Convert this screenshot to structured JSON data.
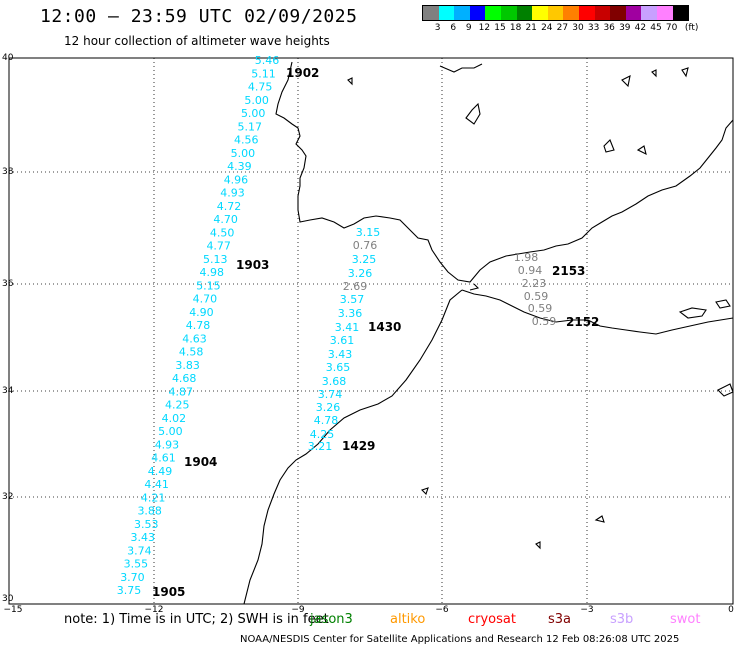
{
  "header": {
    "title": "12:00 – 23:59 UTC 02/09/2025",
    "subtitle": "12 hour collection of altimeter wave heights"
  },
  "colorbar": {
    "unit": "(ft)",
    "labels": [
      "3",
      "6",
      "9",
      "12",
      "15",
      "18",
      "21",
      "24",
      "27",
      "30",
      "33",
      "36",
      "39",
      "42",
      "45",
      "70"
    ],
    "colors": [
      "#808080",
      "#00ffff",
      "#00b0ff",
      "#0000ff",
      "#00ff00",
      "#00c800",
      "#008000",
      "#ffff00",
      "#ffc800",
      "#ff8000",
      "#ff0000",
      "#c80000",
      "#800000",
      "#a000a0",
      "#c8a0ff",
      "#ff80ff",
      "#000000"
    ]
  },
  "axes": {
    "lon_labels": [
      "−15",
      "−12",
      "−9",
      "−6",
      "−3",
      "0"
    ],
    "lat_labels": [
      "40",
      "38",
      "36",
      "34",
      "32",
      "30"
    ]
  },
  "tracks": {
    "jason_left": [
      "5.46",
      "5.11",
      "4.75",
      "5.00",
      "5.00",
      "5.17",
      "4.56",
      "5.00",
      "4.39",
      "4.96",
      "4.93",
      "4.72",
      "4.70",
      "4.50",
      "4.77",
      "5.13",
      "4.98",
      "5.15",
      "4.70",
      "4.90",
      "4.78",
      "4.63",
      "4.58",
      "3.83",
      "4.68",
      "4.87",
      "4.25",
      "4.02",
      "5.00",
      "4.93",
      "4.61",
      "4.49",
      "4.41",
      "4.21",
      "3.88",
      "3.53",
      "3.43",
      "3.74",
      "3.55",
      "3.70",
      "3.75"
    ],
    "jason_right": [
      "3.15",
      "3.25",
      "3.26",
      "3.57",
      "3.36",
      "3.41",
      "3.61",
      "3.43",
      "3.65",
      "3.68",
      "3.74",
      "3.26",
      "4.78",
      "4.25",
      "3.21"
    ],
    "gray_mid": [
      "0.76",
      "2.69"
    ],
    "gray_east": [
      "1.98",
      "0.94",
      "2.23",
      "0.59",
      "0.59",
      "0.59"
    ]
  },
  "pass_labels": {
    "p1902": "1902",
    "p1903": "1903",
    "p1904": "1904",
    "p1905": "1905",
    "p1430": "1430",
    "p1429": "1429",
    "p2153": "2153",
    "p2152": "2152"
  },
  "colors": {
    "cyan": "#00d8ff",
    "orange": "#ff9900",
    "pink": "#ff80ff",
    "darkred": "#800000",
    "gray": "#808080",
    "green": "#008000",
    "red": "#ff0000",
    "lavender": "#c8a0ff"
  },
  "footer": {
    "note_prefix": "note:  1) Time is in UTC;  2) SWH is in feet",
    "satellites": [
      "jason3",
      "altiko",
      "cryosat",
      "s3a",
      "s3b",
      "swot"
    ],
    "credit": "NOAA/NESDIS Center for Satellite Applications and Research    12 Feb 08:26:08 UTC 2025"
  }
}
